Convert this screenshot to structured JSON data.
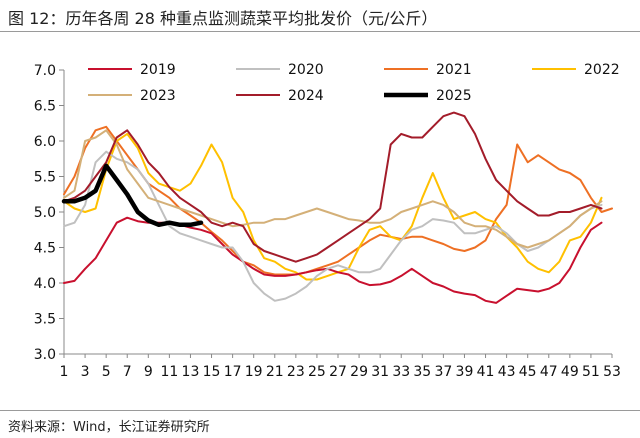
{
  "title": "图 12：历年各周 28 种重点监测蔬菜平均批发价（元/公斤）",
  "source": "资料来源：Wind，长江证券研究所",
  "chart_data": {
    "type": "line",
    "title": "历年各周 28 种重点监测蔬菜平均批发价（元/公斤）",
    "xlabel": "",
    "ylabel": "",
    "ylim": [
      3.0,
      7.0
    ],
    "xlim": [
      1,
      53
    ],
    "yticks": [
      3.0,
      3.5,
      4.0,
      4.5,
      5.0,
      5.5,
      6.0,
      6.5,
      7.0
    ],
    "yticklabels": [
      "3.0",
      "3.5",
      "4.0",
      "4.5",
      "5.0",
      "5.5",
      "6.0",
      "6.5",
      "7.0"
    ],
    "xticks": [
      1,
      3,
      5,
      7,
      9,
      11,
      13,
      15,
      17,
      19,
      21,
      23,
      25,
      27,
      29,
      31,
      33,
      35,
      37,
      39,
      41,
      43,
      45,
      47,
      49,
      51,
      53
    ],
    "xticklabels": [
      "1",
      "3",
      "5",
      "7",
      "9",
      "11",
      "13",
      "15",
      "17",
      "19",
      "21",
      "23",
      "25",
      "27",
      "29",
      "31",
      "33",
      "35",
      "37",
      "39",
      "41",
      "43",
      "45",
      "47",
      "49",
      "51",
      "53"
    ],
    "grid": false,
    "legend_position": "top",
    "series": [
      {
        "name": "2019",
        "color": "#c8102e",
        "x": [
          1,
          2,
          3,
          4,
          5,
          6,
          7,
          8,
          9,
          10,
          11,
          12,
          13,
          14,
          15,
          16,
          17,
          18,
          19,
          20,
          21,
          22,
          23,
          24,
          25,
          26,
          27,
          28,
          29,
          30,
          31,
          32,
          33,
          34,
          35,
          36,
          37,
          38,
          39,
          40,
          41,
          42,
          43,
          44,
          45,
          46,
          47,
          48,
          49,
          50,
          51,
          52
        ],
        "values": [
          4.0,
          4.03,
          4.2,
          4.35,
          4.6,
          4.85,
          4.92,
          4.87,
          4.85,
          4.85,
          4.85,
          4.82,
          4.78,
          4.75,
          4.7,
          4.55,
          4.4,
          4.3,
          4.2,
          4.12,
          4.1,
          4.1,
          4.12,
          4.15,
          4.18,
          4.2,
          4.15,
          4.12,
          4.02,
          3.97,
          3.98,
          4.02,
          4.1,
          4.2,
          4.1,
          4.0,
          3.95,
          3.88,
          3.85,
          3.83,
          3.75,
          3.72,
          3.82,
          3.92,
          3.9,
          3.88,
          3.92,
          4.0,
          4.2,
          4.5,
          4.75,
          4.85
        ]
      },
      {
        "name": "2020",
        "color": "#c0c0c0",
        "x": [
          1,
          2,
          3,
          4,
          5,
          6,
          7,
          8,
          9,
          10,
          11,
          12,
          13,
          14,
          15,
          16,
          17,
          18,
          19,
          20,
          21,
          22,
          23,
          24,
          25,
          26,
          27,
          28,
          29,
          30,
          31,
          32,
          33,
          34,
          35,
          36,
          37,
          38,
          39,
          40,
          41,
          42,
          43,
          44,
          45,
          46,
          47,
          48,
          49,
          50,
          51,
          52
        ],
        "values": [
          4.8,
          4.85,
          5.1,
          5.7,
          5.85,
          5.75,
          5.7,
          5.6,
          5.4,
          5.1,
          4.8,
          4.7,
          4.65,
          4.6,
          4.55,
          4.5,
          4.5,
          4.3,
          4.0,
          3.85,
          3.75,
          3.78,
          3.85,
          3.95,
          4.1,
          4.2,
          4.25,
          4.2,
          4.15,
          4.15,
          4.2,
          4.4,
          4.6,
          4.75,
          4.8,
          4.9,
          4.88,
          4.85,
          4.7,
          4.7,
          4.75,
          4.8,
          4.7,
          4.55,
          4.45,
          4.5,
          4.6,
          4.7,
          4.8,
          4.95,
          5.05,
          5.1
        ]
      },
      {
        "name": "2021",
        "color": "#ee7024",
        "x": [
          1,
          2,
          3,
          4,
          5,
          6,
          7,
          8,
          9,
          10,
          11,
          12,
          13,
          14,
          15,
          16,
          17,
          18,
          19,
          20,
          21,
          22,
          23,
          24,
          25,
          26,
          27,
          28,
          29,
          30,
          31,
          32,
          33,
          34,
          35,
          36,
          37,
          38,
          39,
          40,
          41,
          42,
          43,
          44,
          45,
          46,
          47,
          48,
          49,
          50,
          51,
          52,
          53
        ],
        "values": [
          5.25,
          5.5,
          5.9,
          6.15,
          6.2,
          6.0,
          5.8,
          5.6,
          5.4,
          5.3,
          5.2,
          5.05,
          4.95,
          4.85,
          4.72,
          4.6,
          4.45,
          4.3,
          4.25,
          4.15,
          4.12,
          4.12,
          4.12,
          4.15,
          4.2,
          4.25,
          4.3,
          4.4,
          4.5,
          4.6,
          4.68,
          4.65,
          4.62,
          4.65,
          4.65,
          4.6,
          4.55,
          4.48,
          4.45,
          4.5,
          4.6,
          4.9,
          5.1,
          5.95,
          5.7,
          5.8,
          5.7,
          5.6,
          5.55,
          5.45,
          5.2,
          5.0,
          5.05
        ]
      },
      {
        "name": "2022",
        "color": "#ffc000",
        "x": [
          1,
          2,
          3,
          4,
          5,
          6,
          7,
          8,
          9,
          10,
          11,
          12,
          13,
          14,
          15,
          16,
          17,
          18,
          19,
          20,
          21,
          22,
          23,
          24,
          25,
          26,
          27,
          28,
          29,
          30,
          31,
          32,
          33,
          34,
          35,
          36,
          37,
          38,
          39,
          40,
          41,
          42,
          43,
          44,
          45,
          46,
          47,
          48,
          49,
          50,
          51,
          52
        ],
        "values": [
          5.15,
          5.05,
          5.0,
          5.05,
          5.6,
          6.0,
          6.1,
          5.9,
          5.55,
          5.4,
          5.35,
          5.3,
          5.4,
          5.65,
          5.95,
          5.7,
          5.2,
          5.0,
          4.6,
          4.35,
          4.3,
          4.2,
          4.15,
          4.05,
          4.05,
          4.1,
          4.15,
          4.2,
          4.5,
          4.75,
          4.8,
          4.65,
          4.6,
          4.8,
          5.2,
          5.55,
          5.2,
          4.9,
          4.95,
          5.0,
          4.9,
          4.85,
          4.65,
          4.5,
          4.3,
          4.2,
          4.15,
          4.3,
          4.6,
          4.65,
          4.85,
          5.2
        ]
      },
      {
        "name": "2023",
        "color": "#d4b078",
        "x": [
          1,
          2,
          3,
          4,
          5,
          6,
          7,
          8,
          9,
          10,
          11,
          12,
          13,
          14,
          15,
          16,
          17,
          18,
          19,
          20,
          21,
          22,
          23,
          24,
          25,
          26,
          27,
          28,
          29,
          30,
          31,
          32,
          33,
          34,
          35,
          36,
          37,
          38,
          39,
          40,
          41,
          42,
          43,
          44,
          45,
          46,
          47,
          48,
          49,
          50,
          51,
          52
        ],
        "values": [
          5.2,
          5.3,
          6.0,
          6.05,
          6.15,
          5.95,
          5.6,
          5.4,
          5.2,
          5.15,
          5.1,
          5.05,
          5.0,
          4.95,
          4.9,
          4.85,
          4.8,
          4.82,
          4.85,
          4.85,
          4.9,
          4.9,
          4.95,
          5.0,
          5.05,
          5.0,
          4.95,
          4.9,
          4.88,
          4.85,
          4.85,
          4.9,
          5.0,
          5.05,
          5.1,
          5.15,
          5.1,
          5.0,
          4.85,
          4.8,
          4.8,
          4.75,
          4.65,
          4.55,
          4.5,
          4.55,
          4.6,
          4.7,
          4.8,
          4.95,
          5.05,
          5.15
        ]
      },
      {
        "name": "2024",
        "color": "#a31c2a",
        "x": [
          1,
          2,
          3,
          4,
          5,
          6,
          7,
          8,
          9,
          10,
          11,
          12,
          13,
          14,
          15,
          16,
          17,
          18,
          19,
          20,
          21,
          22,
          23,
          24,
          25,
          26,
          27,
          28,
          29,
          30,
          31,
          32,
          33,
          34,
          35,
          36,
          37,
          38,
          39,
          40,
          41,
          42,
          43,
          44,
          45,
          46,
          47,
          48,
          49,
          50,
          51,
          52
        ],
        "values": [
          5.15,
          5.2,
          5.3,
          5.5,
          5.7,
          6.05,
          6.15,
          5.95,
          5.7,
          5.55,
          5.35,
          5.2,
          5.1,
          5.0,
          4.85,
          4.8,
          4.85,
          4.8,
          4.55,
          4.45,
          4.4,
          4.35,
          4.3,
          4.35,
          4.4,
          4.5,
          4.6,
          4.7,
          4.8,
          4.9,
          5.05,
          5.95,
          6.1,
          6.05,
          6.05,
          6.2,
          6.35,
          6.4,
          6.35,
          6.1,
          5.75,
          5.45,
          5.3,
          5.15,
          5.05,
          4.95,
          4.95,
          5.0,
          5.0,
          5.05,
          5.1,
          5.05
        ]
      },
      {
        "name": "2025",
        "color": "#000000",
        "x": [
          1,
          2,
          3,
          4,
          5,
          6,
          7,
          8,
          9,
          10,
          11,
          12,
          13,
          14
        ],
        "values": [
          5.15,
          5.15,
          5.2,
          5.3,
          5.65,
          5.45,
          5.25,
          5.0,
          4.88,
          4.82,
          4.85,
          4.82,
          4.82,
          4.85
        ]
      }
    ]
  }
}
